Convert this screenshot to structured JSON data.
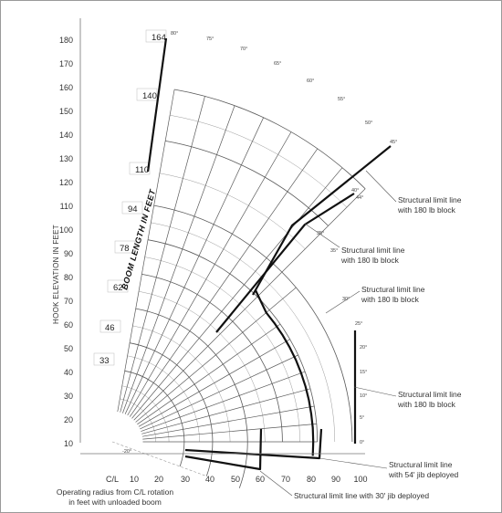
{
  "y_axis": {
    "title": "HOOK ELEVATION IN FEET",
    "ticks": [
      "10",
      "20",
      "30",
      "40",
      "50",
      "60",
      "70",
      "80",
      "90",
      "100",
      "110",
      "120",
      "130",
      "140",
      "150",
      "160",
      "170",
      "180"
    ]
  },
  "x_axis": {
    "ticks": [
      "C/L",
      "10",
      "20",
      "30",
      "40",
      "50",
      "60",
      "70",
      "80",
      "90",
      "100"
    ],
    "caption_lines": [
      "Operating radius from C/L rotation",
      "in feet with unloaded boom"
    ]
  },
  "boom": {
    "title": "BOOM LENGTH IN FEET",
    "lengths": [
      "33",
      "46",
      "62",
      "78",
      "94",
      "110",
      "140",
      "164"
    ]
  },
  "angles": [
    "80°",
    "75°",
    "70°",
    "65°",
    "60°",
    "55°",
    "50°",
    "45°",
    "40°",
    "35°",
    "30°",
    "25°",
    "20°",
    "15°",
    "10°",
    "5°",
    "0°"
  ],
  "angle_labels": {
    "upper": [
      "80°",
      "75°",
      "70°",
      "65°",
      "60°",
      "55°",
      "50°",
      "45°"
    ],
    "inner": [
      "40°",
      "44°",
      "35°",
      "30°",
      "25°",
      "20°",
      "15°",
      "10°",
      "5°",
      "0°"
    ],
    "lower_left": "-20°"
  },
  "annotations": [
    {
      "id": "a1",
      "lines": [
        "Structural limit line",
        "with 180 lb block"
      ]
    },
    {
      "id": "a2",
      "lines": [
        "Structural limit line",
        "with 180 lb block"
      ]
    },
    {
      "id": "a3",
      "lines": [
        "Structural limit line",
        "with 180 lb block"
      ]
    },
    {
      "id": "a4",
      "lines": [
        "Structural limit line",
        "with 180 lb block"
      ]
    },
    {
      "id": "a5",
      "lines": [
        "Structural limit line",
        "with 54' jib deployed"
      ]
    },
    {
      "id": "a6",
      "lines": [
        "Structural limit line with 30' jib deployed"
      ]
    }
  ]
}
